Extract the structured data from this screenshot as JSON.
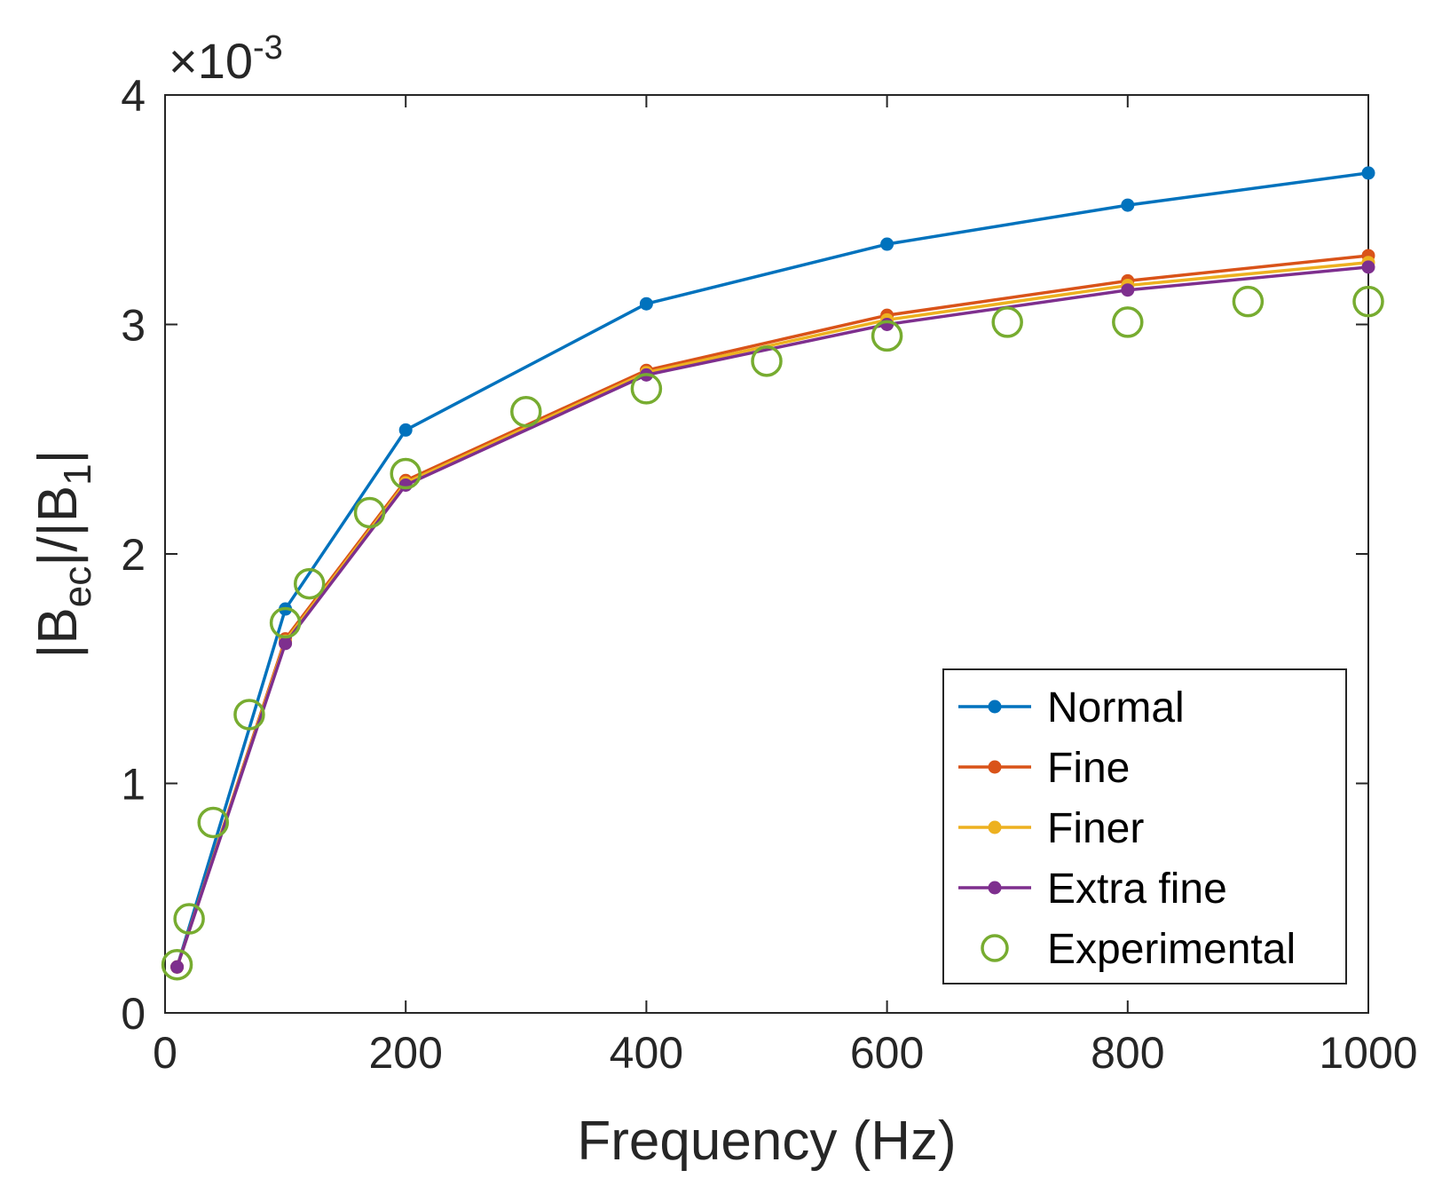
{
  "chart_data": {
    "type": "line",
    "xlabel": "Frequency (Hz)",
    "ylabel": {
      "base": "|B",
      "sub1": "ec",
      "mid": "|/|B",
      "sub2": "1",
      "end": "|"
    },
    "y_multiplier": {
      "prefix": "×10",
      "exponent": "-3"
    },
    "xlim": [
      0,
      1000
    ],
    "ylim": [
      0,
      4
    ],
    "xticks": [
      0,
      200,
      400,
      600,
      800,
      1000
    ],
    "xtick_labels": [
      "0",
      "200",
      "400",
      "600",
      "800",
      "1000"
    ],
    "yticks": [
      0,
      1,
      2,
      3,
      4
    ],
    "ytick_labels": [
      "0",
      "1",
      "2",
      "3",
      "4"
    ],
    "legend_position": "bottom-right",
    "series": [
      {
        "name": "Normal",
        "color": "#0072BD",
        "style": "line-dot",
        "x": [
          10,
          100,
          200,
          400,
          600,
          800,
          1000
        ],
        "y": [
          0.2,
          1.76,
          2.54,
          3.09,
          3.35,
          3.52,
          3.66
        ]
      },
      {
        "name": "Fine",
        "color": "#D95319",
        "style": "line-dot",
        "x": [
          10,
          100,
          200,
          400,
          600,
          800,
          1000
        ],
        "y": [
          0.2,
          1.63,
          2.32,
          2.8,
          3.04,
          3.19,
          3.3
        ]
      },
      {
        "name": "Finer",
        "color": "#EDB120",
        "style": "line-dot",
        "x": [
          10,
          100,
          200,
          400,
          600,
          800,
          1000
        ],
        "y": [
          0.2,
          1.62,
          2.31,
          2.79,
          3.02,
          3.17,
          3.27
        ]
      },
      {
        "name": "Extra fine",
        "color": "#7E2F8E",
        "style": "line-dot",
        "x": [
          10,
          100,
          200,
          400,
          600,
          800,
          1000
        ],
        "y": [
          0.2,
          1.61,
          2.3,
          2.78,
          3.0,
          3.15,
          3.25
        ]
      },
      {
        "name": "Experimental",
        "color": "#77AC30",
        "style": "open-circle",
        "x": [
          10,
          20,
          40,
          70,
          100,
          120,
          170,
          200,
          300,
          400,
          500,
          600,
          700,
          800,
          900,
          1000
        ],
        "y": [
          0.21,
          0.41,
          0.83,
          1.3,
          1.7,
          1.87,
          2.18,
          2.35,
          2.62,
          2.72,
          2.84,
          2.95,
          3.01,
          3.01,
          3.1,
          3.1
        ]
      }
    ]
  }
}
